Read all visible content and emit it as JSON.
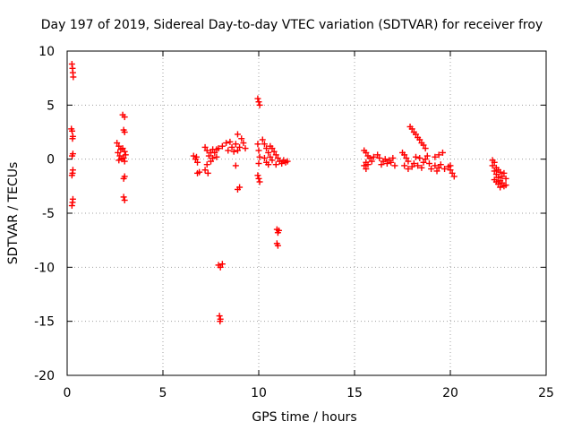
{
  "chart_data": {
    "type": "scatter",
    "title": "Day 197 of 2019, Sidereal Day-to-day VTEC variation (SDTVAR) for receiver froy",
    "xlabel": "GPS time / hours",
    "ylabel": "SDTVAR / TECUs",
    "xlim": [
      0,
      25
    ],
    "ylim": [
      -20,
      10
    ],
    "xticks": [
      0,
      5,
      10,
      15,
      20,
      25
    ],
    "yticks": [
      -20,
      -15,
      -10,
      -5,
      0,
      5,
      10
    ],
    "xtick_labels": [
      "0",
      "5",
      "10",
      "15",
      "20",
      "25"
    ],
    "ytick_labels": [
      "-20",
      "-15",
      "-10",
      "-5",
      "0",
      "5",
      "10"
    ],
    "grid": true,
    "marker": "+",
    "color": "#ff0000",
    "series": [
      {
        "name": "SDTVAR",
        "points": [
          [
            0.25,
            8.8
          ],
          [
            0.28,
            8.4
          ],
          [
            0.3,
            8.0
          ],
          [
            0.32,
            7.6
          ],
          [
            0.22,
            2.8
          ],
          [
            0.26,
            2.6
          ],
          [
            0.3,
            2.1
          ],
          [
            0.28,
            1.9
          ],
          [
            0.3,
            0.5
          ],
          [
            0.26,
            0.3
          ],
          [
            0.3,
            -1.0
          ],
          [
            0.28,
            -1.3
          ],
          [
            0.25,
            -1.5
          ],
          [
            0.3,
            -3.7
          ],
          [
            0.28,
            -4.0
          ],
          [
            0.25,
            -4.3
          ],
          [
            2.6,
            1.5
          ],
          [
            2.7,
            1.2
          ],
          [
            2.8,
            0.9
          ],
          [
            2.65,
            0.6
          ],
          [
            2.75,
            0.3
          ],
          [
            2.85,
            0.0
          ],
          [
            2.9,
            1.0
          ],
          [
            3.0,
            0.7
          ],
          [
            3.05,
            0.4
          ],
          [
            2.95,
            0.1
          ],
          [
            3.0,
            -0.2
          ],
          [
            2.7,
            -0.1
          ],
          [
            2.9,
            4.1
          ],
          [
            3.0,
            3.9
          ],
          [
            2.95,
            2.7
          ],
          [
            3.0,
            2.5
          ],
          [
            3.0,
            -1.6
          ],
          [
            2.95,
            -1.8
          ],
          [
            2.95,
            -3.5
          ],
          [
            3.0,
            -3.8
          ],
          [
            6.6,
            0.3
          ],
          [
            6.7,
            0.0
          ],
          [
            6.8,
            -0.3
          ],
          [
            6.75,
            0.2
          ],
          [
            6.8,
            -1.3
          ],
          [
            6.9,
            -1.2
          ],
          [
            7.2,
            1.1
          ],
          [
            7.3,
            0.8
          ],
          [
            7.4,
            0.3
          ],
          [
            7.5,
            -0.2
          ],
          [
            7.3,
            -0.5
          ],
          [
            7.2,
            -1.0
          ],
          [
            7.35,
            -1.3
          ],
          [
            7.6,
            0.9
          ],
          [
            7.7,
            0.6
          ],
          [
            7.8,
            0.2
          ],
          [
            7.5,
            0.6
          ],
          [
            7.6,
            0.1
          ],
          [
            7.8,
            0.9
          ],
          [
            7.9,
            1.0
          ],
          [
            8.1,
            1.2
          ],
          [
            8.3,
            1.5
          ],
          [
            8.5,
            1.6
          ],
          [
            8.6,
            1.1
          ],
          [
            8.7,
            0.7
          ],
          [
            8.9,
            0.8
          ],
          [
            9.0,
            1.1
          ],
          [
            9.2,
            1.5
          ],
          [
            9.3,
            1.0
          ],
          [
            8.9,
            2.3
          ],
          [
            9.1,
            1.9
          ],
          [
            8.8,
            1.4
          ],
          [
            8.4,
            0.8
          ],
          [
            8.8,
            -0.6
          ],
          [
            8.9,
            -2.8
          ],
          [
            9.0,
            -2.6
          ],
          [
            7.9,
            -9.8
          ],
          [
            8.0,
            -10.0
          ],
          [
            8.1,
            -9.7
          ],
          [
            7.95,
            -14.5
          ],
          [
            8.0,
            -14.8
          ],
          [
            7.98,
            -15.0
          ],
          [
            9.95,
            5.6
          ],
          [
            10.0,
            5.3
          ],
          [
            10.05,
            5.0
          ],
          [
            9.95,
            1.4
          ],
          [
            10.0,
            0.8
          ],
          [
            10.05,
            0.2
          ],
          [
            10.0,
            -0.4
          ],
          [
            9.95,
            -1.5
          ],
          [
            10.0,
            -1.8
          ],
          [
            10.05,
            -2.1
          ],
          [
            10.2,
            1.8
          ],
          [
            10.3,
            1.4
          ],
          [
            10.4,
            1.0
          ],
          [
            10.5,
            0.6
          ],
          [
            10.6,
            0.2
          ],
          [
            10.3,
            0.1
          ],
          [
            10.4,
            -0.3
          ],
          [
            10.5,
            -0.5
          ],
          [
            10.6,
            1.2
          ],
          [
            10.7,
            1.0
          ],
          [
            10.8,
            0.7
          ],
          [
            10.9,
            0.4
          ],
          [
            11.0,
            0.1
          ],
          [
            11.1,
            -0.2
          ],
          [
            11.2,
            -0.4
          ],
          [
            11.3,
            -0.1
          ],
          [
            11.4,
            -0.3
          ],
          [
            11.5,
            -0.2
          ],
          [
            10.9,
            -0.5
          ],
          [
            10.7,
            -0.1
          ],
          [
            10.95,
            -6.5
          ],
          [
            11.0,
            -6.8
          ],
          [
            11.05,
            -6.6
          ],
          [
            10.95,
            -7.8
          ],
          [
            11.0,
            -8.0
          ],
          [
            15.5,
            0.8
          ],
          [
            15.6,
            0.6
          ],
          [
            15.7,
            0.3
          ],
          [
            15.8,
            0.1
          ],
          [
            15.6,
            -0.3
          ],
          [
            15.5,
            -0.6
          ],
          [
            15.6,
            -0.9
          ],
          [
            15.7,
            -0.5
          ],
          [
            15.9,
            -0.2
          ],
          [
            16.0,
            0.2
          ],
          [
            16.2,
            0.4
          ],
          [
            16.3,
            0.1
          ],
          [
            16.5,
            -0.2
          ],
          [
            16.6,
            0.0
          ],
          [
            16.7,
            -0.4
          ],
          [
            16.8,
            -0.1
          ],
          [
            16.9,
            -0.3
          ],
          [
            17.0,
            0.1
          ],
          [
            17.1,
            -0.6
          ],
          [
            16.4,
            -0.5
          ],
          [
            17.5,
            0.6
          ],
          [
            17.6,
            0.4
          ],
          [
            17.7,
            0.1
          ],
          [
            17.8,
            -0.2
          ],
          [
            17.6,
            -0.6
          ],
          [
            17.8,
            -0.9
          ],
          [
            18.0,
            -0.7
          ],
          [
            18.1,
            -0.4
          ],
          [
            18.3,
            -0.6
          ],
          [
            18.5,
            -0.8
          ],
          [
            18.6,
            -0.3
          ],
          [
            18.7,
            0.0
          ],
          [
            18.9,
            -0.4
          ],
          [
            19.0,
            -0.9
          ],
          [
            19.2,
            -0.6
          ],
          [
            19.3,
            -1.1
          ],
          [
            19.4,
            -0.8
          ],
          [
            19.5,
            -0.5
          ],
          [
            19.6,
            0.6
          ],
          [
            19.4,
            0.4
          ],
          [
            19.2,
            0.2
          ],
          [
            19.7,
            -0.9
          ],
          [
            19.9,
            -0.7
          ],
          [
            20.0,
            -1.0
          ],
          [
            20.1,
            -1.3
          ],
          [
            20.2,
            -1.6
          ],
          [
            20.0,
            -0.6
          ],
          [
            18.2,
            0.2
          ],
          [
            18.4,
            0.1
          ],
          [
            18.8,
            0.3
          ],
          [
            17.9,
            3.0
          ],
          [
            18.0,
            2.8
          ],
          [
            18.1,
            2.5
          ],
          [
            18.2,
            2.3
          ],
          [
            18.3,
            2.0
          ],
          [
            18.4,
            1.8
          ],
          [
            18.5,
            1.5
          ],
          [
            18.6,
            1.3
          ],
          [
            18.7,
            1.0
          ],
          [
            22.2,
            -0.1
          ],
          [
            22.3,
            -0.3
          ],
          [
            22.2,
            -0.6
          ],
          [
            22.4,
            -0.8
          ],
          [
            22.3,
            -1.1
          ],
          [
            22.5,
            -1.0
          ],
          [
            22.4,
            -1.4
          ],
          [
            22.6,
            -1.2
          ],
          [
            22.5,
            -1.7
          ],
          [
            22.3,
            -1.9
          ],
          [
            22.6,
            -2.0
          ],
          [
            22.7,
            -1.6
          ],
          [
            22.8,
            -1.3
          ],
          [
            22.9,
            -1.8
          ],
          [
            22.7,
            -2.2
          ],
          [
            22.5,
            -2.3
          ],
          [
            22.8,
            -2.5
          ],
          [
            22.6,
            -2.6
          ],
          [
            22.9,
            -2.4
          ],
          [
            22.4,
            -2.1
          ]
        ]
      }
    ]
  }
}
